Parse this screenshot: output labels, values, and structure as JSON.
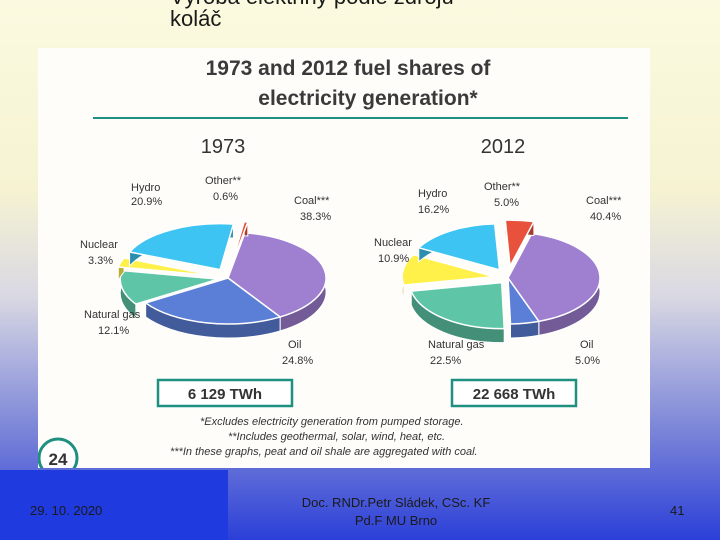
{
  "slide": {
    "title": "Výroba elektřiny podle zdrojů -\nkoláč",
    "footer_date": "29. 10. 2020",
    "footer_author": "Doc. RNDr.Petr Sládek, CSc. KF\nPd.F MU Brno",
    "page_number": "41"
  },
  "chart_data": {
    "type": "pie",
    "title": "1973 and 2012 fuel shares of electricity generation*",
    "badge_number": "24",
    "pies": [
      {
        "year": "1973",
        "total": "6 129 TWh",
        "slices": [
          {
            "label": "Coal***",
            "value": 38.3,
            "value_label": "38.3%",
            "color": "#9f7fd0"
          },
          {
            "label": "Oil",
            "value": 24.8,
            "value_label": "24.8%",
            "color": "#5b7fd6"
          },
          {
            "label": "Natural gas",
            "value": 12.1,
            "value_label": "12.1%",
            "color": "#5ec6a6"
          },
          {
            "label": "Nuclear",
            "value": 3.3,
            "value_label": "3.3%",
            "color": "#fff04a"
          },
          {
            "label": "Hydro",
            "value": 20.9,
            "value_label": "20.9%",
            "color": "#3ec4f2"
          },
          {
            "label": "Other**",
            "value": 0.6,
            "value_label": "0.6%",
            "color": "#e8523c"
          }
        ]
      },
      {
        "year": "2012",
        "total": "22 668 TWh",
        "slices": [
          {
            "label": "Coal***",
            "value": 40.4,
            "value_label": "40.4%",
            "color": "#9f7fd0"
          },
          {
            "label": "Oil",
            "value": 5.0,
            "value_label": "5.0%",
            "color": "#5b7fd6"
          },
          {
            "label": "Natural gas",
            "value": 22.5,
            "value_label": "22.5%",
            "color": "#5ec6a6"
          },
          {
            "label": "Nuclear",
            "value": 10.9,
            "value_label": "10.9%",
            "color": "#fff04a"
          },
          {
            "label": "Hydro",
            "value": 16.2,
            "value_label": "16.2%",
            "color": "#3ec4f2"
          },
          {
            "label": "Other**",
            "value": 5.0,
            "value_label": "5.0%",
            "color": "#e8523c"
          }
        ]
      }
    ],
    "footnotes": [
      "*Excludes electricity generation from pumped storage.",
      "**Includes geothermal, solar, wind, heat, etc.",
      "***In these graphs, peat and oil shale are aggregated with coal."
    ],
    "colors": {
      "title": "#3a3a3a",
      "rule": "#1f8f80",
      "total_box": "#1f8f80"
    }
  }
}
